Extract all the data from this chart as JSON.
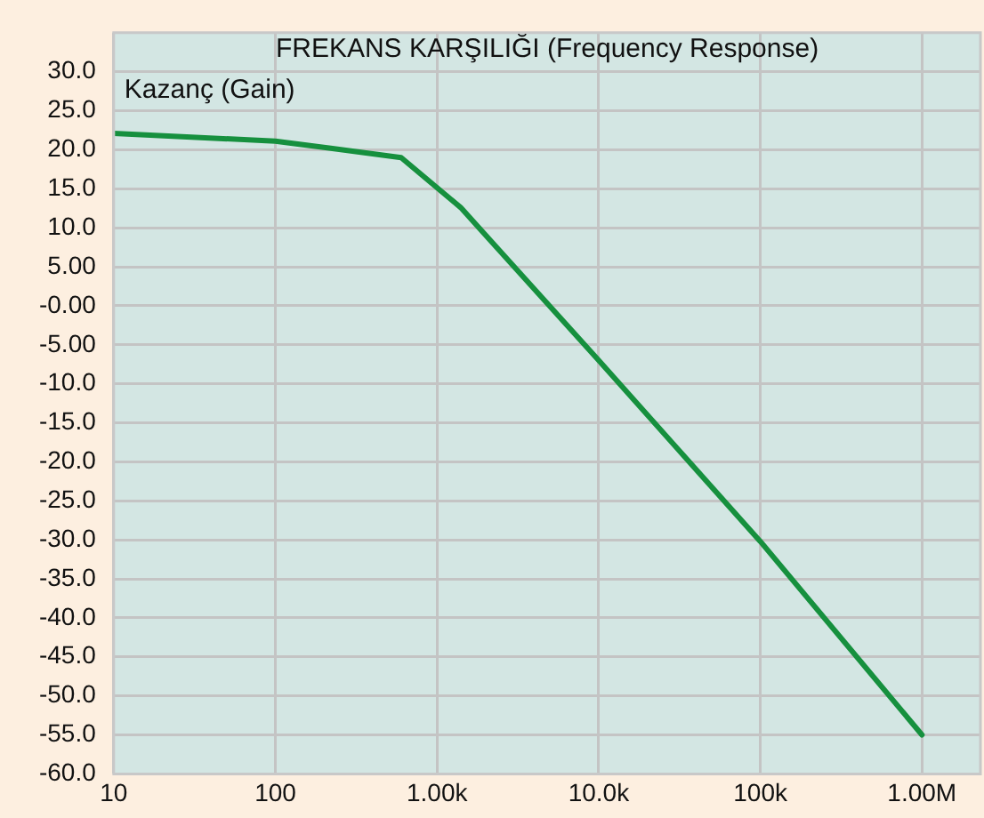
{
  "chart_data": {
    "type": "line",
    "title": "FREKANS KARŞILIĞI (Frequency Response)",
    "ylabel": "Kazanç (Gain)",
    "x": [
      10,
      100,
      220,
      600,
      1400,
      10000,
      100000,
      1000000
    ],
    "series": [
      {
        "color": "#16903e",
        "values": [
          22.1,
          21.1,
          20.2,
          19.0,
          12.6,
          -7.0,
          -30.2,
          -55.0
        ]
      }
    ],
    "log": "x",
    "xlim": [
      10,
      2300000
    ],
    "ylim": [
      -60,
      35
    ],
    "xticks": [
      10,
      100,
      {
        "value": 1000,
        "label": "1.00k"
      },
      {
        "value": 10000,
        "label": "10.0k"
      },
      {
        "value": 100000,
        "label": "100k"
      },
      {
        "value": 1000000,
        "label": "1.00M"
      }
    ],
    "yticks": [
      {
        "value": 30,
        "label": "30.0"
      },
      {
        "value": 25,
        "label": "25.0"
      },
      {
        "value": 20,
        "label": "20.0"
      },
      {
        "value": 15,
        "label": "15.0"
      },
      {
        "value": 10,
        "label": "10.0"
      },
      {
        "value": 5,
        "label": "5.00"
      },
      {
        "value": 0,
        "label": "-0.00"
      },
      {
        "value": -5,
        "label": "-5.00"
      },
      {
        "value": -10,
        "label": "-10.0"
      },
      {
        "value": -15,
        "label": "-15.0"
      },
      {
        "value": -20,
        "label": "-20.0"
      },
      {
        "value": -25,
        "label": "-25.0"
      },
      {
        "value": -30,
        "label": "-30.0"
      },
      {
        "value": -35,
        "label": "-35.0"
      },
      {
        "value": -40,
        "label": "-40.0"
      },
      {
        "value": -45,
        "label": "-45.0"
      },
      {
        "value": -50,
        "label": "-50.0"
      },
      {
        "value": -55,
        "label": "-55.0"
      },
      {
        "value": -60,
        "label": "-60.0"
      }
    ],
    "grid": true,
    "legend": false,
    "marker": "none",
    "line_style": "solid"
  }
}
